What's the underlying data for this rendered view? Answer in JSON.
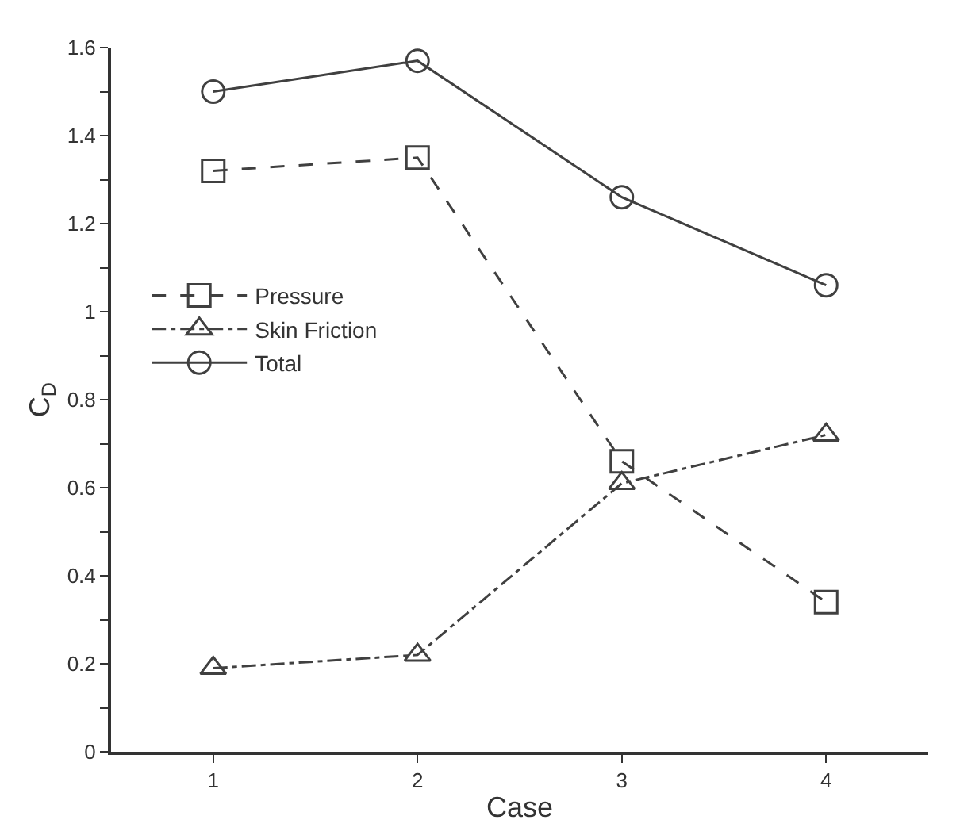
{
  "chart_data": {
    "type": "line",
    "xlabel": "Case",
    "ylabel": "C$_{D}$",
    "x": [
      1,
      2,
      3,
      4
    ],
    "series": [
      {
        "name": "Pressure",
        "color": "#404040",
        "line_style": "dashed",
        "marker": "square",
        "values": [
          1.32,
          1.35,
          0.66,
          0.34
        ]
      },
      {
        "name": "Skin Friction",
        "color": "#404040",
        "line_style": "dashdot",
        "marker": "triangle",
        "values": [
          0.19,
          0.22,
          0.61,
          0.72
        ]
      },
      {
        "name": "Total",
        "color": "#404040",
        "line_style": "solid",
        "marker": "circle",
        "values": [
          1.5,
          1.57,
          1.26,
          1.06
        ]
      }
    ],
    "xlim": [
      0.5,
      4.5
    ],
    "xticks": [
      1,
      2,
      3,
      4
    ],
    "ylim": [
      0,
      1.6
    ],
    "yticks": [
      0,
      {
        "value": 0.1,
        "label": null
      },
      0.2,
      {
        "value": 0.3,
        "label": null
      },
      0.4,
      {
        "value": 0.5,
        "label": null
      },
      0.6,
      {
        "value": 0.7,
        "label": null
      },
      0.8,
      {
        "value": 0.9,
        "label": null
      },
      1,
      {
        "value": 1.1,
        "label": null
      },
      1.2,
      {
        "value": 1.3,
        "label": null
      },
      1.4,
      {
        "value": 1.5,
        "label": null
      },
      1.6
    ],
    "legend": "left"
  }
}
